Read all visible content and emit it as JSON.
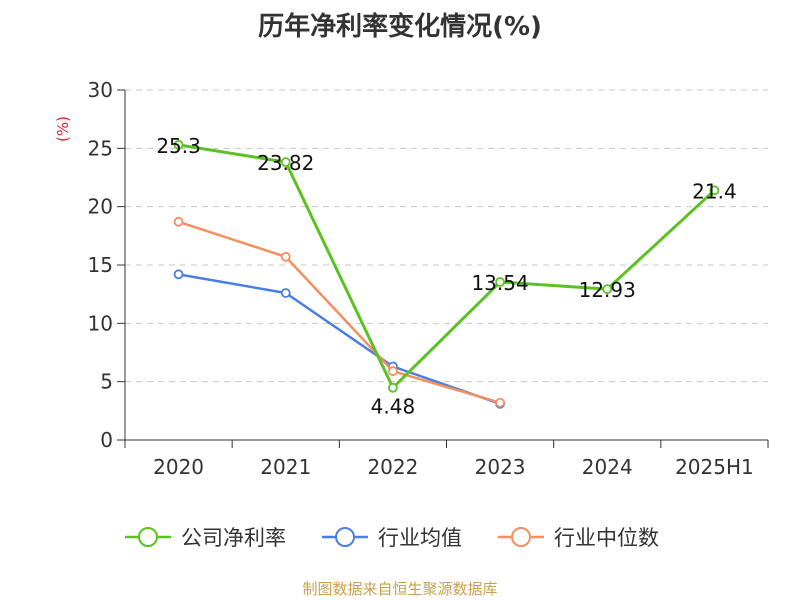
{
  "title": "历年净利率变化情况(%)",
  "source": "制图数据来自恒生聚源数据库",
  "colors": {
    "company": "#5cc122",
    "industry_avg": "#4a7fe0",
    "industry_median": "#f49060",
    "ylabel": "#e02020"
  },
  "chart_data": {
    "type": "line",
    "title": "历年净利率变化情况(%)",
    "ylabel": "(%)",
    "xlabel": "",
    "categories": [
      "2020",
      "2021",
      "2022",
      "2023",
      "2024",
      "2025H1"
    ],
    "ylim": [
      0,
      30
    ],
    "yticks": [
      0,
      5,
      10,
      15,
      20,
      25,
      30
    ],
    "grid": "horizontal-dashed",
    "legend": "bottom",
    "series": [
      {
        "name": "公司净利率",
        "color": "#5cc122",
        "values": [
          25.3,
          23.82,
          4.48,
          13.54,
          12.93,
          21.4
        ],
        "labels": [
          "25.3",
          "23.82",
          "4.48",
          "13.54",
          "12.93",
          "21.4"
        ]
      },
      {
        "name": "行业均值",
        "color": "#4a7fe0",
        "values": [
          14.2,
          12.6,
          6.3,
          3.1,
          null,
          null
        ]
      },
      {
        "name": "行业中位数",
        "color": "#f49060",
        "values": [
          18.7,
          15.7,
          5.9,
          3.2,
          null,
          null
        ]
      }
    ]
  }
}
